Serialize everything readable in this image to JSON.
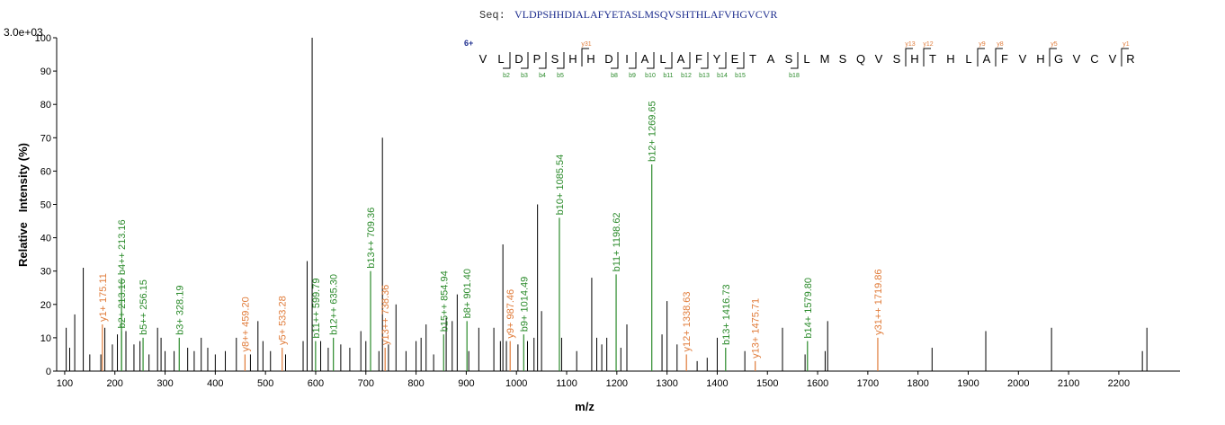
{
  "chart_data": {
    "type": "spectrum",
    "seq_label": "Seq:",
    "sequence": "VLDPSHHDIALAFYETASLMSQVSHTHLAFVHGVCVR",
    "intensity_max_label": "3.0e+03",
    "x_label": "m/z",
    "y_label": "Relative   Intensity (%)",
    "xlim": [
      84,
      2322
    ],
    "ylim": [
      0,
      100
    ],
    "xticks": [
      100,
      200,
      300,
      400,
      500,
      600,
      700,
      800,
      900,
      1000,
      1100,
      1200,
      1300,
      1400,
      1500,
      1600,
      1700,
      1800,
      1900,
      2000,
      2100,
      2200
    ],
    "yticks": [
      0,
      10,
      20,
      30,
      40,
      50,
      60,
      70,
      80,
      90,
      100
    ],
    "fragment_map": {
      "charge": "6+",
      "residues": [
        "V",
        "L",
        "D",
        "P",
        "S",
        "H",
        "H",
        "D",
        "I",
        "A",
        "L",
        "A",
        "F",
        "Y",
        "E",
        "T",
        "A",
        "S",
        "L",
        "M",
        "S",
        "Q",
        "V",
        "S",
        "H",
        "T",
        "H",
        "L",
        "A",
        "F",
        "V",
        "H",
        "G",
        "V",
        "C",
        "V",
        "R"
      ],
      "b_marks": [
        "b2",
        "b3",
        "b4",
        "b5",
        "b8",
        "b9",
        "b10",
        "b11",
        "b12",
        "b13",
        "b14",
        "b15",
        "b18"
      ],
      "y_marks": [
        "y31",
        "y13",
        "y12",
        "y9",
        "y8",
        "y5",
        "y1"
      ],
      "b_color": "#2a8a2a",
      "y_color": "#e07b39",
      "color": "#1f2f8f"
    },
    "peaks": {
      "color": "#000000",
      "x": [
        103,
        110,
        120,
        137,
        150,
        172,
        180,
        195,
        205,
        222,
        238,
        250,
        268,
        285,
        292,
        300,
        318,
        345,
        358,
        372,
        385,
        400,
        420,
        442,
        470,
        485,
        495,
        510,
        540,
        575,
        583,
        593,
        610,
        625,
        650,
        668,
        690,
        700,
        726,
        733,
        745,
        760,
        780,
        800,
        810,
        820,
        835,
        860,
        872,
        882,
        905,
        925,
        955,
        968,
        973,
        980,
        1003,
        1022,
        1035,
        1042,
        1050,
        1090,
        1120,
        1150,
        1160,
        1170,
        1180,
        1208,
        1220,
        1290,
        1300,
        1320,
        1360,
        1380,
        1400,
        1455,
        1530,
        1575,
        1615,
        1620,
        1828,
        1935,
        2066,
        2247,
        2256
      ],
      "values": [
        13,
        7,
        17,
        31,
        5,
        5,
        13,
        8,
        11,
        12,
        8,
        9,
        5,
        13,
        10,
        6,
        6,
        7,
        6,
        10,
        7,
        5,
        6,
        10,
        5,
        15,
        9,
        6,
        5,
        9,
        33,
        100,
        9,
        7,
        8,
        7,
        12,
        9,
        6,
        70,
        8,
        20,
        6,
        9,
        10,
        14,
        5,
        16,
        15,
        23,
        6,
        13,
        13,
        9,
        38,
        9,
        8,
        9,
        10,
        50,
        18,
        10,
        6,
        28,
        10,
        8,
        10,
        7,
        14,
        11,
        21,
        8,
        3,
        4,
        10,
        6,
        13,
        5,
        6,
        15,
        7,
        12,
        13,
        6,
        13
      ]
    },
    "b_ions": {
      "color": "#2a8a2a",
      "labels": [
        "b2+ 213.16",
        "b4++ 213.16",
        "b5++ 256.15",
        "b3+ 328.19",
        "b11++ 599.79",
        "b12++ 635.30",
        "b13++ 709.36",
        "b15++ 854.94",
        "b8+ 901.40",
        "b9+ 1014.49",
        "b10+ 1085.54",
        "b11+ 1198.62",
        "b12+ 1269.65",
        "b13+ 1416.73",
        "b14+ 1579.80"
      ],
      "x": [
        213.16,
        213.16,
        256.15,
        328.19,
        599.79,
        635.3,
        709.36,
        854.94,
        901.4,
        1014.49,
        1085.54,
        1198.62,
        1269.65,
        1416.73,
        1579.8
      ],
      "values": [
        12,
        28,
        10,
        10,
        9,
        10,
        30,
        11,
        15,
        11,
        46,
        29,
        62,
        7,
        9
      ]
    },
    "y_ions": {
      "color": "#e07b39",
      "labels": [
        "y1+ 175.11",
        "y8++ 459.20",
        "y5+ 533.28",
        "y13++ 738.36",
        "y9+ 987.46",
        "y12+ 1338.63",
        "y13+ 1475.71",
        "y31++ 1719.86"
      ],
      "x": [
        175.11,
        459.2,
        533.28,
        738.36,
        987.46,
        1338.63,
        1475.71,
        1719.86
      ],
      "values": [
        14,
        5,
        7,
        7,
        9,
        5,
        3,
        10
      ]
    }
  }
}
